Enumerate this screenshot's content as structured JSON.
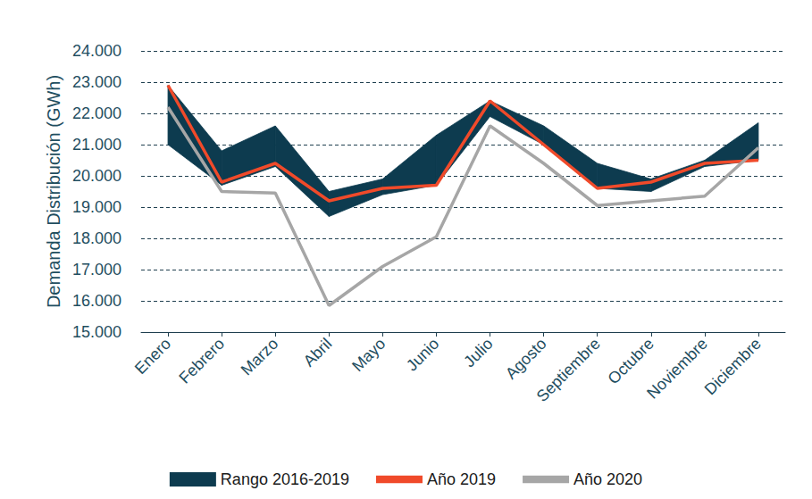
{
  "chart_data": {
    "type": "line",
    "y_label": "Demanda Distribución (GWh)",
    "categories": [
      "Enero",
      "Febrero",
      "Marzo",
      "Abril",
      "Mayo",
      "Junio",
      "Julio",
      "Agosto",
      "Septiembre",
      "Octubre",
      "Noviembre",
      "Diciembre"
    ],
    "series": [
      {
        "name": "Rango 2016-2019",
        "type": "range",
        "color": "#0d3b4f",
        "low": [
          21000,
          19700,
          20300,
          18700,
          19400,
          19700,
          21900,
          21000,
          19600,
          19500,
          20300,
          20500
        ],
        "high": [
          22900,
          20800,
          21600,
          19500,
          19900,
          21300,
          22400,
          21600,
          20400,
          19900,
          20500,
          21700
        ]
      },
      {
        "name": "Año 2019",
        "type": "line",
        "color": "#f04a2a",
        "values": [
          22900,
          19800,
          20400,
          19200,
          19600,
          19700,
          22400,
          21000,
          19600,
          19800,
          20400,
          20500
        ]
      },
      {
        "name": "Año 2020",
        "type": "line",
        "color": "#a6a6a6",
        "values": [
          22200,
          19500,
          19450,
          15850,
          17100,
          18050,
          21600,
          20400,
          19050,
          19200,
          19350,
          20900
        ]
      }
    ],
    "ylim": [
      15000,
      24000
    ],
    "yticks": [
      {
        "value": 15000,
        "label": "15.000"
      },
      {
        "value": 16000,
        "label": "16.000"
      },
      {
        "value": 17000,
        "label": "17.000"
      },
      {
        "value": 18000,
        "label": "18.000"
      },
      {
        "value": 19000,
        "label": "19.000"
      },
      {
        "value": 20000,
        "label": "20.000"
      },
      {
        "value": 21000,
        "label": "21.000"
      },
      {
        "value": 22000,
        "label": "22.000"
      },
      {
        "value": 23000,
        "label": "23.000"
      },
      {
        "value": 24000,
        "label": "24.000"
      }
    ],
    "grid": true,
    "legend": "bottom"
  }
}
